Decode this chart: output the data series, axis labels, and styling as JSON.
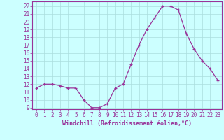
{
  "x": [
    0,
    1,
    2,
    3,
    4,
    5,
    6,
    7,
    8,
    9,
    10,
    11,
    12,
    13,
    14,
    15,
    16,
    17,
    18,
    19,
    20,
    21,
    22,
    23
  ],
  "y": [
    11.5,
    12.0,
    12.0,
    11.8,
    11.5,
    11.5,
    10.0,
    9.0,
    9.0,
    9.5,
    11.5,
    12.0,
    14.5,
    17.0,
    19.0,
    20.5,
    22.0,
    22.0,
    21.5,
    18.5,
    16.5,
    15.0,
    14.0,
    12.5
  ],
  "line_color": "#993399",
  "marker": "+",
  "marker_color": "#993399",
  "bg_color": "#ccffff",
  "grid_color": "#aadddd",
  "xlabel": "Windchill (Refroidissement éolien,°C)",
  "xlabel_color": "#993399",
  "tick_color": "#993399",
  "spine_color": "#993399",
  "ylim": [
    8.8,
    22.6
  ],
  "xlim": [
    -0.5,
    23.5
  ],
  "yticks": [
    9,
    10,
    11,
    12,
    13,
    14,
    15,
    16,
    17,
    18,
    19,
    20,
    21,
    22
  ],
  "xticks": [
    0,
    1,
    2,
    3,
    4,
    5,
    6,
    7,
    8,
    9,
    10,
    11,
    12,
    13,
    14,
    15,
    16,
    17,
    18,
    19,
    20,
    21,
    22,
    23
  ],
  "tick_fontsize": 5.5,
  "xlabel_fontsize": 6.0
}
